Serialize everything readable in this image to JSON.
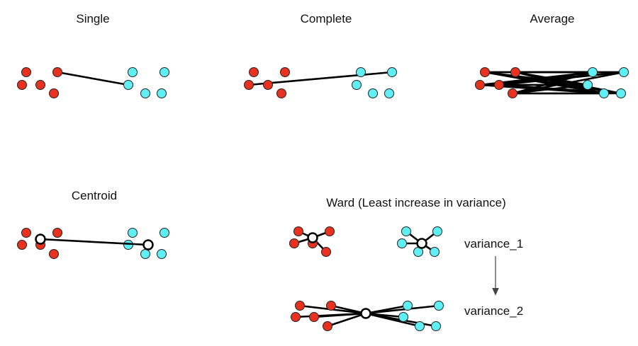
{
  "panels": {
    "single": {
      "title": "Single"
    },
    "complete": {
      "title": "Complete"
    },
    "average": {
      "title": "Average"
    },
    "centroid": {
      "title": "Centroid"
    },
    "ward": {
      "title": "Ward (Least increase in variance)",
      "variance_1": "variance_1",
      "variance_2": "variance_2"
    }
  },
  "colors": {
    "cluster_a": "#e8311f",
    "cluster_b": "#5ff0f5",
    "centroid": "#ffffff",
    "arrow": "#444444"
  }
}
